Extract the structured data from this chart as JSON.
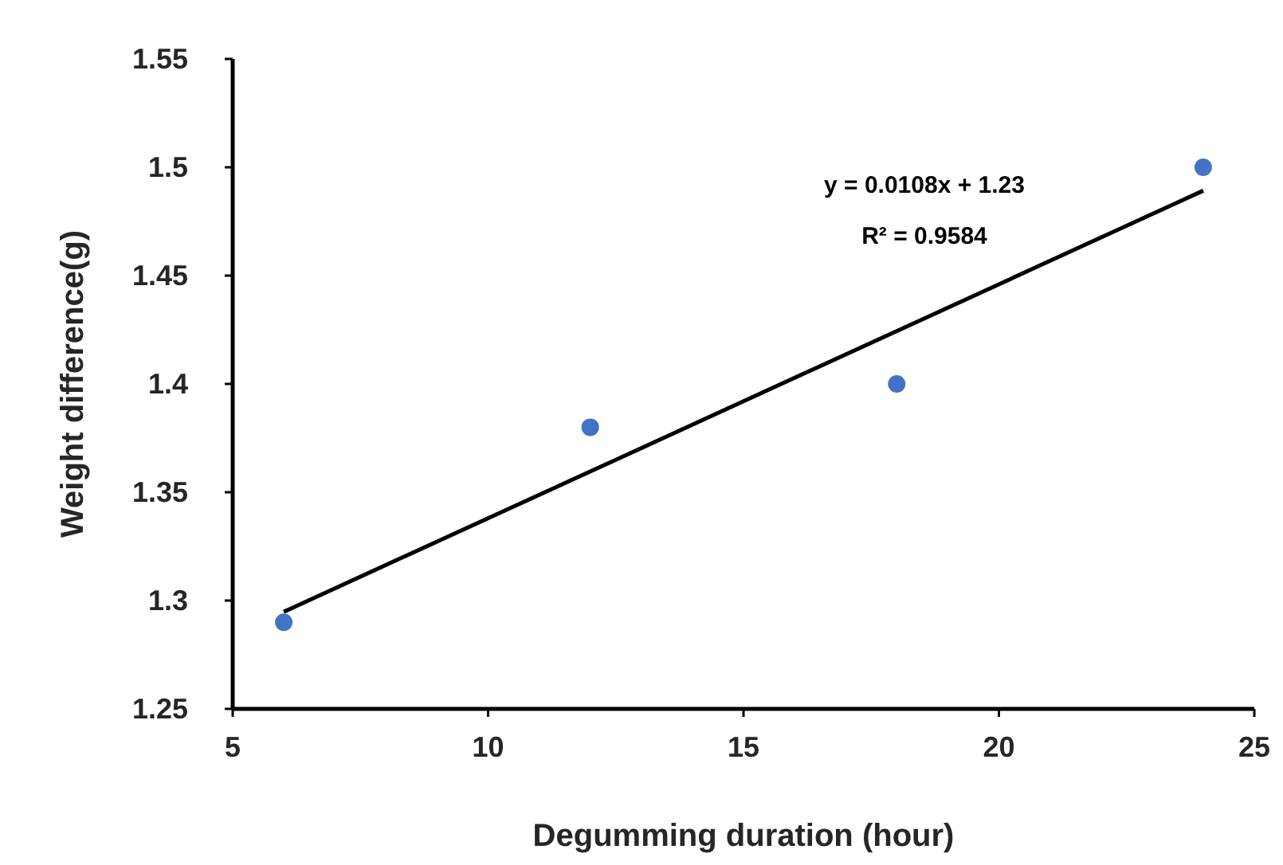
{
  "chart_data": {
    "type": "scatter",
    "xlabel": "Degumming duration (hour)",
    "ylabel": "Weight difference(g)",
    "xlim": [
      5,
      25
    ],
    "xticks": [
      5,
      10,
      15,
      20,
      25
    ],
    "ylim": [
      1.25,
      1.55
    ],
    "yticks": [
      1.25,
      1.3,
      1.35,
      1.4,
      1.45,
      1.5,
      1.55
    ],
    "grid": false,
    "marker": "circle",
    "series": [
      {
        "color": "#4472c4",
        "x": [
          6,
          12,
          18,
          24
        ],
        "values": [
          1.29,
          1.38,
          1.4,
          1.5
        ]
      },
      {
        "type": "line",
        "color": "#000000",
        "x": [
          6,
          24
        ],
        "values": [
          1.2948,
          1.4892
        ],
        "marker": "none",
        "line_style": "solid"
      }
    ],
    "annotations": [
      "y = 0.0108x + 1.23",
      "R² = 0.9584"
    ]
  }
}
